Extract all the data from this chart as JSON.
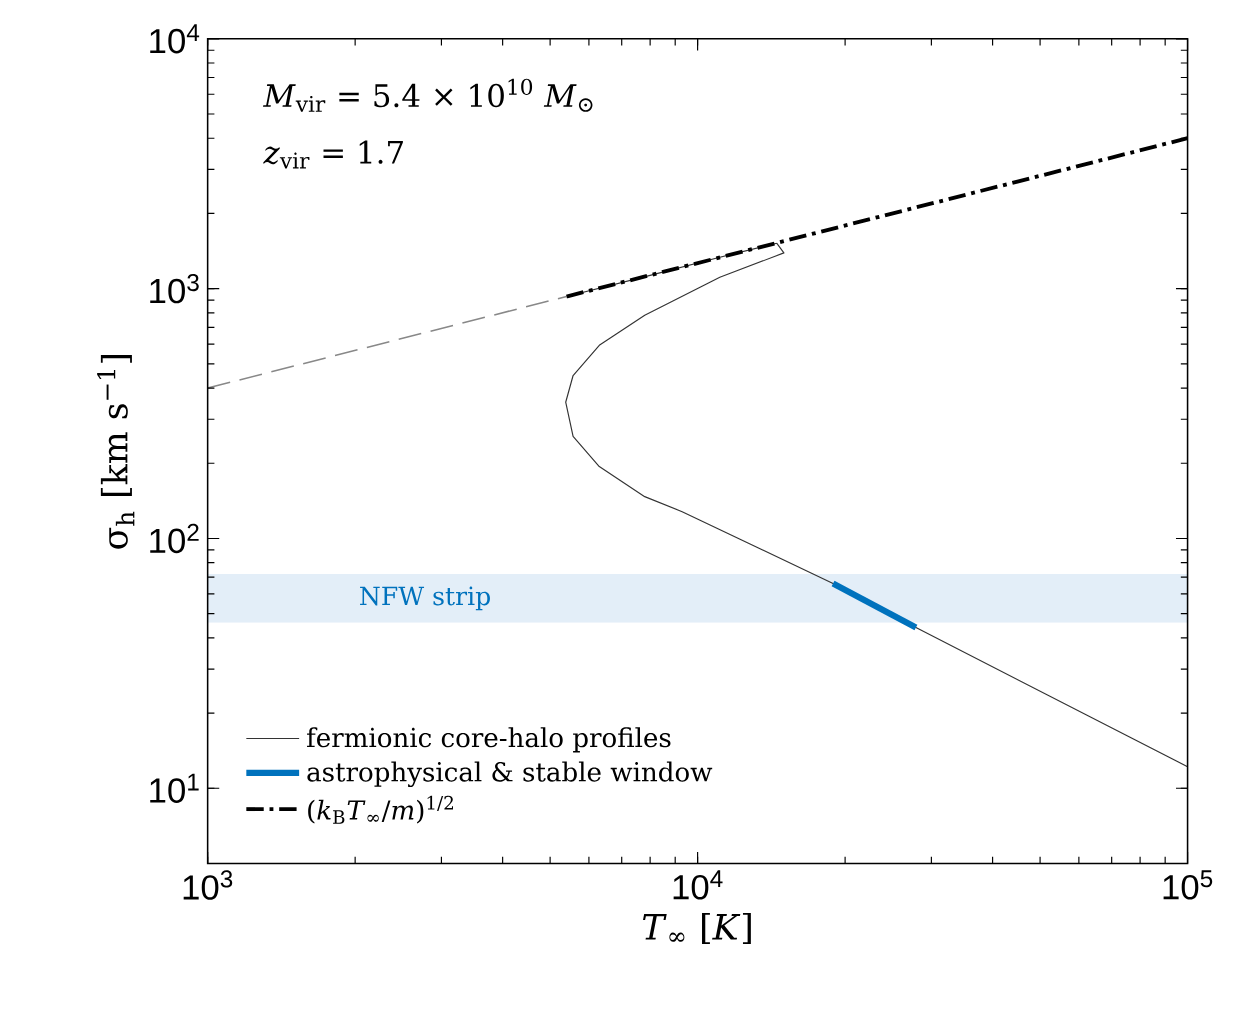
{
  "chart_data": {
    "type": "line",
    "xlabel": "*T*$_{∞}$   [*K*]",
    "ylabel": "σ$_{h}$   [km s$^{−1}$]",
    "annotations": [
      "*M*$_{vir}$ = 5.4 × 10$^{10}$ *M*$_{⊙}$",
      "*z*$_{vir}$ = 1.7"
    ],
    "log": "xy",
    "xlim": [
      1000,
      100000
    ],
    "ylim": [
      5,
      10000
    ],
    "xticks": [
      {
        "value": 1000,
        "label": "10$^{3}$"
      },
      {
        "value": 10000,
        "label": "10$^{4}$"
      },
      {
        "value": 100000,
        "label": "10$^{5}$"
      }
    ],
    "yticks": [
      {
        "value": 10,
        "label": "10$^{1}$"
      },
      {
        "value": 100,
        "label": "10$^{2}$"
      },
      {
        "value": 1000,
        "label": "10$^{3}$"
      },
      {
        "value": 10000,
        "label": "10$^{4}$"
      }
    ],
    "bands": [
      {
        "axis": "y",
        "from": 46,
        "to": 72,
        "label": "NFW strip",
        "color": "#e3eef8"
      }
    ],
    "legend": "bottom left",
    "grid": false,
    "series": [
      {
        "name": "fermionic core-halo profiles",
        "color": "#333333",
        "line_style": "solid",
        "x": [
          5400,
          8000,
          11000,
          14500,
          15000,
          11100,
          7800,
          6300,
          5570,
          5380,
          5570,
          6300,
          7800,
          9300,
          18900,
          27900,
          100000
        ],
        "values": [
          930,
          1130,
          1330,
          1520,
          1390,
          1110,
          783,
          593,
          449,
          351,
          256,
          194,
          147,
          128,
          66,
          44,
          12.2
        ]
      },
      {
        "name": "astrophysical & stable window",
        "color": "#0072bd",
        "line_style": "solid",
        "x": [
          18900,
          27900
        ],
        "values": [
          66,
          44
        ]
      },
      {
        "name": "(*k*$_{B}$*T*$_{∞}$/*m*)$^{1/2}$",
        "color": "#000000",
        "line_style": "dashdot",
        "x": [
          5400,
          100000
        ],
        "values": [
          930,
          4000
        ]
      },
      {
        "color": "#888888",
        "line_style": "dashed",
        "x": [
          1000,
          5400
        ],
        "values": [
          400,
          930
        ]
      }
    ]
  }
}
